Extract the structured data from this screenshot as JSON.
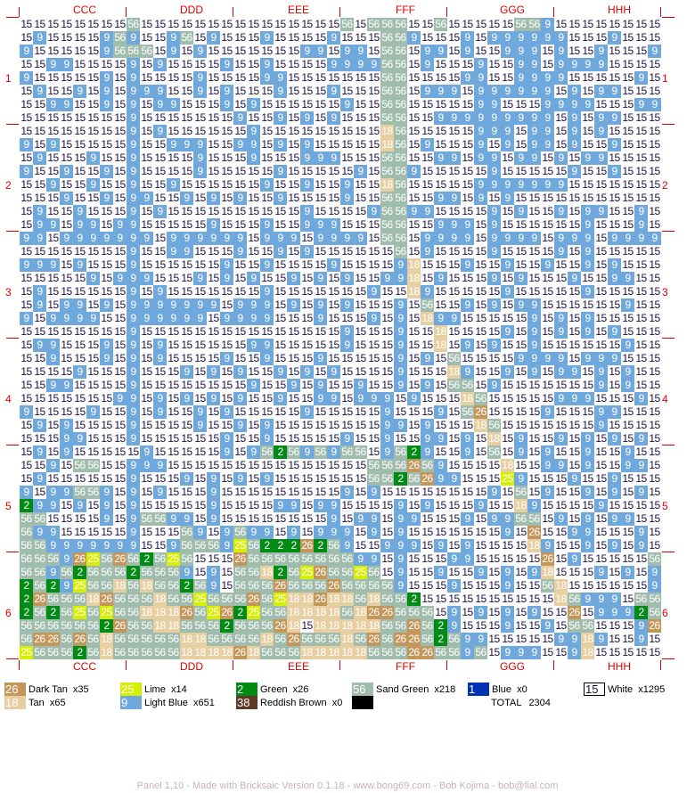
{
  "sections": [
    "CCC",
    "DDD",
    "EEE",
    "FFF",
    "GGG",
    "HHH"
  ],
  "row_groups": [
    "1",
    "2",
    "3",
    "4",
    "5",
    "6"
  ],
  "colors": {
    "15": {
      "bg": "#ffffff",
      "fg": "#1a1040"
    },
    "9": {
      "bg": "#6fa8dc",
      "fg": "#ffffff"
    },
    "56": {
      "bg": "#a0bcac",
      "fg": "#ffffff"
    },
    "18": {
      "bg": "#e8cfa2",
      "fg": "#ffffff"
    },
    "26": {
      "bg": "#c4965a",
      "fg": "#ffffff"
    },
    "25": {
      "bg": "#d8ee00",
      "fg": "#ffffff"
    },
    "2": {
      "bg": "#008c14",
      "fg": "#ffffff"
    },
    "38": {
      "bg": "#5c3a26",
      "fg": "#ffffff"
    },
    "1": {
      "bg": "#0033b4",
      "fg": "#ffffff"
    },
    "accent": "#e00000",
    "footer": "#c9b2b6"
  },
  "mosaic": {
    "code_map": {
      "W": "15",
      "B": "9",
      "S": "56",
      "T": "18",
      "D": "26",
      "L": "25",
      "G": "2"
    },
    "rows": [
      "WWWWWWWWSWWWWWWWWWWWWWWWSWSSSWWSWWWWWSSBWWWWWWWW",
      "WBWWWWBSBWWBSWBWWWBWWWWBWWWSSBWWWBWBBBBBBWWWBWWW",
      "BWWWWWBSSSWBWBWWWWWWWBBWBBWSSWBBWBWWBBBWBWWBWWWB",
      "WWBBWWWWBWBWWWWBWWBWWWWBBBBSSWBWWWBWWBBWBBBBWWWW",
      "BWWWWWBWBWWWWBWWWWBBWWWWWWWSSWWWWBBWWBBBBWWWWWBW",
      "WBWWBWBWBBBWWBWBWWWBWWWBWWWSSWBBBWBBBBBBWBWBBWWW",
      "WWBBWWBWBWBBWWWBWBWWWWWWBWWSSWWWWWBBWWWBBBBWWWBB",
      "WWWWWWWWBWWWWWWWBWWBWBWBWWWSSWWBBBBBBBBBWBWBBWWW",
      "WWWWWWWWBWBWWWWWWBWWWWWWWWWTSWWWWWBBBWBBWBWBWWWW",
      "BWBWWWWWBWWBBBWWBBWBWBWWWWWTSWBWWWBWBWBBWBWWBWWW",
      "WBWWWBWWBWWWWBWWWBWWWBBBWWWSSWWBBWBBWBBWBWBBWWWW",
      "BWWBWWBWBWWWWBWWWWWBWWWWWBWSSBWWWWWBWWWWWBWWBWWW",
      "WWBWWBWWBWWBWWWWWWBWWBWWBWWTSWWWWWBBBBBBBWWWWWWW",
      "WWWBWWBWBBWWBWBWBWWBWWWWBWWSSWWBBWBWBWWWWWWWWWWW",
      "WBWWBWWWBWBWWWWWWWWWWBWWWWBSSBBWWWWBWBWWBWBBWWBW",
      "WBBWBBWBBWWWWWBWWWBWWBBBWWWSSWWBBBWBWWWWWWBWWWBW",
      "BBWBBBBBBBWBBBBBBWBBBWBBBBWSSWBBBBWBBBBWBBBWBBBB",
      "WWWWWWWWBWWBBWWWBWWBWBWWWWWWSWBWWWWBWWWWBWBWWWWW",
      "BBBWBWWWBWWWWWWBWWBWWWWBWWWWBTWWWBWWBWWBWWBWBWWW",
      "WWWWWBWBBBWWWBWBWBWWBWBWBWWBBTWBWWWBWBWWWBWWBBWW",
      "WBWWWWWWBWBWWWWWWWBWWWWWWWBWWTBWWWWWBWWWWWBWWWWW",
      "WBWBBWBWBBBBBBBWBBBWBWBWBWWWBWSWWBWBWBBWWWWWWBWW",
      "BWBBBBWWBBBBBBWBBBBWWWBWWWBWBWTBBWWWWWBWBWBWWWWW",
      "WWWWWWWWBWWWWWWWWWWWWWWWBWWWBWWTWWWWBWBWBWBWBWWW",
      "WBBWWWBWBWBWWWWWWBBWWWWWBWWWBWWTWBWBWWBWWWWWWBWW",
      "WWBWWWBWBWBWWWWBWWBWWWBWWWWWBWBWSWWWWBBBBWBBBWWW",
      "WWWWBWWWBWWWBWBWBWWBWBWBWWWWBWWWTBWWBWBWBBWBWBWW",
      "WWBBWWWWBWWWWWWWWBWWBWBWWBWWBWBWSSWBWWWWWWWBWBWW",
      "WWWWWWWBBWBWBWBWBWWBWWBBWBBBWBWWWTSWWWWWBBBWWWBW",
      "BWWWWBWWBWBWWBWBWWWWWBWWWWWBWWWBWSDWWWWBWWWBBWWW",
      "WBWBWWWWBWWWWBWWBWBWWWWWWWWBBWBWWWTSWWWWWWWBWWWW",
      "WWWBBWWWBWWWWWWBWWBWWWWWBWWBWWBBWBWTWBWWBWBWBWBW",
      "WBWBWWWWWBWWWWWBWBSGSBSBSSWBSGBWWBWSWBWBWWBWWBWW",
      "WWBWSSWWBBBWWWWWWWWWWWWWWWSSSDSBWWWWTWWBBWBWWBBW",
      "WBWWWWWWBWWWBWBWBWBWWWWWWWSSGSDBBWWWLBWWWBWWBWWW",
      "BWBBSSBWBWBWWWBWWWWWWWWWBWBWWWWWWWWBWSWBWWBWBWBW",
      "GBBWBWBWBWWWWWBWWWWBBWBBWWWWBWBWWWBWWTBWWWWBWWWW",
      "SSWWWWBWBSSBBWBWWWWWWWWBWBBWBBWWWBWBBSSWBWBWBBWW",
      "SBBWWWWWBWWWSBWBSBBWBWBBBWBWBWWWWWWWBWDWWBBWWWBW",
      "SSBBBBBBBWWBSSSBLSGGGDGSBWWBBBWBWBWWWWTBWWBWBWBW",
      "SSSBDLSDSGSLSWWWDSSSSSSSSBBWBWWWBBWWWWWDWBWWWWWS",
      "SSBSGSSSGSSSBWBWSSTGSLDSSLSWBWWBWWBWBWBTWWWBWBWB",
      "GSGBLSSTSTSSGSBWSSSDSSSDSSSSBWWWBWWWBWWSTWWWWWWB",
      "GDSSSTDSSSTSSLSSSDSLTTDTTSTSSGWWWWWWWWWWTSBBBWSS",
      "GSGSLSLSSTTTDSLDGLSSTTTTSTDDSSSWBWBWBWBWWDWBBBGS",
      "SSSSSSGDSSTTSSSGSSSDTWTTTTTSSDSGBWWWBWWBWSSWWWBD",
      "SDDSDSTSSSSSTTSSSSTSDSSSTSDSDDSGSBBWWWWWBBTBWWBW",
      "LSSSGSTSSSSSTTTTDTSSSTTTTTSSSDDSSBSWBBBWWBTWWWWW"
    ]
  },
  "legend": [
    {
      "code": "26",
      "name": "Dark Tan",
      "count": "x35"
    },
    {
      "code": "25",
      "name": "Lime",
      "count": "x14"
    },
    {
      "code": "2",
      "name": "Green",
      "count": "x26"
    },
    {
      "code": "56",
      "name": "Sand Green",
      "count": "x218"
    },
    {
      "code": "1",
      "name": "Blue",
      "count": "x0"
    },
    {
      "code": "15",
      "name": "White",
      "count": "x1295"
    },
    {
      "code": "18",
      "name": "Tan",
      "count": "x65"
    },
    {
      "code": "9",
      "name": "Light Blue",
      "count": "x651"
    },
    {
      "code": "38",
      "name": "Reddish Brown",
      "count": "x0"
    },
    {
      "code": "",
      "name": "",
      "count": "",
      "swatch_color": "#000000"
    }
  ],
  "total": {
    "label": "TOTAL",
    "value": "2304"
  },
  "footer": "Panel 1,10 - Made with Bricksaic Version 0.1.18 - www.bong69.com - Bob Kojima - bob@fial.com"
}
